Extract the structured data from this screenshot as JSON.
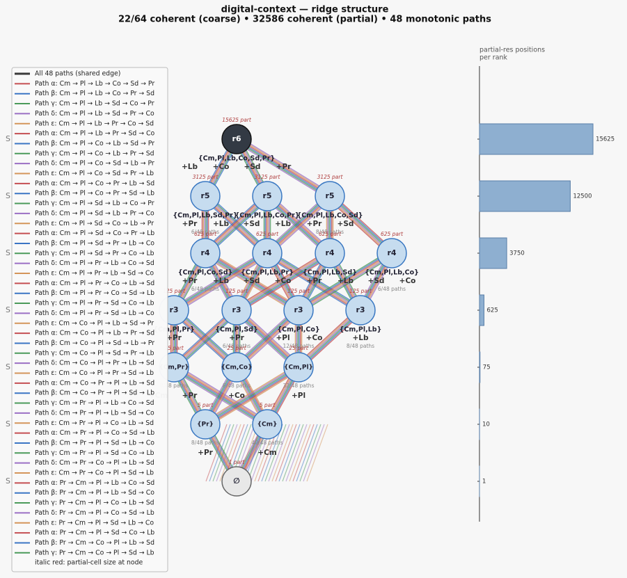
{
  "header": {
    "title": "digital-context — ridge structure",
    "subtitle": "22/64 coherent (coarse)  •  32586 coherent (partial)  •  48 monotonic paths"
  },
  "side_labels": [
    "S",
    "S",
    "S",
    "S",
    "S",
    "S",
    "S"
  ],
  "legend": {
    "shared": {
      "label": "All 48 paths (shared edge)",
      "color": "#3a3a3a"
    },
    "entries": [
      {
        "label": "Path α: Cm → Pl → Lb → Co → Sd → Pr",
        "color": "#c44e52"
      },
      {
        "label": "Path β: Cm → Pl → Lb → Co → Pr → Sd",
        "color": "#3b75c4"
      },
      {
        "label": "Path γ: Cm → Pl → Lb → Sd → Co → Pr",
        "color": "#4a9a5a"
      },
      {
        "label": "Path δ: Cm → Pl → Lb → Sd → Pr → Co",
        "color": "#9b6fc4"
      },
      {
        "label": "Path ε: Cm → Pl → Lb → Pr → Co → Sd",
        "color": "#d4955a"
      },
      {
        "label": "Path α: Cm → Pl → Lb → Pr → Sd → Co",
        "color": "#c44e52"
      },
      {
        "label": "Path β: Cm → Pl → Co → Lb → Sd → Pr",
        "color": "#3b75c4"
      },
      {
        "label": "Path γ: Cm → Pl → Co → Lb → Pr → Sd",
        "color": "#4a9a5a"
      },
      {
        "label": "Path δ: Cm → Pl → Co → Sd → Lb → Pr",
        "color": "#9b6fc4"
      },
      {
        "label": "Path ε: Cm → Pl → Co → Sd → Pr → Lb",
        "color": "#d4955a"
      },
      {
        "label": "Path α: Cm → Pl → Co → Pr → Lb → Sd",
        "color": "#c44e52"
      },
      {
        "label": "Path β: Cm → Pl → Co → Pr → Sd → Lb",
        "color": "#3b75c4"
      },
      {
        "label": "Path γ: Cm → Pl → Sd → Lb → Co → Pr",
        "color": "#4a9a5a"
      },
      {
        "label": "Path δ: Cm → Pl → Sd → Lb → Pr → Co",
        "color": "#9b6fc4"
      },
      {
        "label": "Path ε: Cm → Pl → Sd → Co → Lb → Pr",
        "color": "#d4955a"
      },
      {
        "label": "Path α: Cm → Pl → Sd → Co → Pr → Lb",
        "color": "#c44e52"
      },
      {
        "label": "Path β: Cm → Pl → Sd → Pr → Lb → Co",
        "color": "#3b75c4"
      },
      {
        "label": "Path γ: Cm → Pl → Sd → Pr → Co → Lb",
        "color": "#4a9a5a"
      },
      {
        "label": "Path δ: Cm → Pl → Pr → Lb → Co → Sd",
        "color": "#9b6fc4"
      },
      {
        "label": "Path ε: Cm → Pl → Pr → Lb → Sd → Co",
        "color": "#d4955a"
      },
      {
        "label": "Path α: Cm → Pl → Pr → Co → Lb → Sd",
        "color": "#c44e52"
      },
      {
        "label": "Path β: Cm → Pl → Pr → Co → Sd → Lb",
        "color": "#3b75c4"
      },
      {
        "label": "Path γ: Cm → Pl → Pr → Sd → Co → Lb",
        "color": "#4a9a5a"
      },
      {
        "label": "Path δ: Cm → Pl → Pr → Sd → Lb → Co",
        "color": "#9b6fc4"
      },
      {
        "label": "Path ε: Cm → Co → Pl → Lb → Sd → Pr",
        "color": "#d4955a"
      },
      {
        "label": "Path α: Cm → Co → Pl → Lb → Pr → Sd",
        "color": "#c44e52"
      },
      {
        "label": "Path β: Cm → Co → Pl → Sd → Lb → Pr",
        "color": "#3b75c4"
      },
      {
        "label": "Path γ: Cm → Co → Pl → Sd → Pr → Lb",
        "color": "#4a9a5a"
      },
      {
        "label": "Path δ: Cm → Co → Pl → Pr → Lb → Sd",
        "color": "#9b6fc4"
      },
      {
        "label": "Path ε: Cm → Co → Pl → Pr → Sd → Lb",
        "color": "#d4955a"
      },
      {
        "label": "Path α: Cm → Co → Pr → Pl → Lb → Sd",
        "color": "#c44e52"
      },
      {
        "label": "Path β: Cm → Co → Pr → Pl → Sd → Lb",
        "color": "#3b75c4"
      },
      {
        "label": "Path γ: Cm → Pr → Pl → Lb → Co → Sd",
        "color": "#4a9a5a"
      },
      {
        "label": "Path δ: Cm → Pr → Pl → Lb → Sd → Co",
        "color": "#9b6fc4"
      },
      {
        "label": "Path ε: Cm → Pr → Pl → Co → Lb → Sd",
        "color": "#d4955a"
      },
      {
        "label": "Path α: Cm → Pr → Pl → Co → Sd → Lb",
        "color": "#c44e52"
      },
      {
        "label": "Path β: Cm → Pr → Pl → Sd → Lb → Co",
        "color": "#3b75c4"
      },
      {
        "label": "Path γ: Cm → Pr → Pl → Sd → Co → Lb",
        "color": "#4a9a5a"
      },
      {
        "label": "Path δ: Cm → Pr → Co → Pl → Lb → Sd",
        "color": "#9b6fc4"
      },
      {
        "label": "Path ε: Cm → Pr → Co → Pl → Sd → Lb",
        "color": "#d4955a"
      },
      {
        "label": "Path α: Pr → Cm → Pl → Lb → Co → Sd",
        "color": "#c44e52"
      },
      {
        "label": "Path β: Pr → Cm → Pl → Lb → Sd → Co",
        "color": "#3b75c4"
      },
      {
        "label": "Path γ: Pr → Cm → Pl → Co → Lb → Sd",
        "color": "#4a9a5a"
      },
      {
        "label": "Path δ: Pr → Cm → Pl → Co → Sd → Lb",
        "color": "#9b6fc4"
      },
      {
        "label": "Path ε: Pr → Cm → Pl → Sd → Lb → Co",
        "color": "#d4955a"
      },
      {
        "label": "Path α: Pr → Cm → Pl → Sd → Co → Lb",
        "color": "#c44e52"
      },
      {
        "label": "Path β: Pr → Cm → Co → Pl → Lb → Sd",
        "color": "#3b75c4"
      },
      {
        "label": "Path γ: Pr → Cm → Co → Pl → Sd → Lb",
        "color": "#4a9a5a"
      }
    ],
    "note": "italic red: partial-cell size at node"
  },
  "nodes": [
    {
      "label": "r6",
      "part": "15625 part",
      "set": "{Cm,Pl,Lb,Co,Sd,Pr}",
      "adds": [
        "+Lb",
        "+Co",
        "+Sd",
        "+Pr"
      ]
    },
    {
      "label": "r5",
      "part": "3125 part",
      "set": "{Cm,Pl,Lb,Sd,Pr}",
      "adds": [
        "+Pr",
        "+Lb"
      ],
      "paths": "6/48 paths"
    },
    {
      "label": "r5",
      "part": "3125 part",
      "set": "{Cm,Pl,Lb,Co,Pr}",
      "adds": [
        "+Sd",
        "+Lb"
      ]
    },
    {
      "label": "r5",
      "part": "3125 part",
      "set": "{Cm,Pl,Lb,Co,Sd}",
      "adds": [
        "+Pr",
        "+Sd"
      ],
      "paths": "8/48 paths"
    },
    {
      "label": "r4",
      "part": "625 part",
      "set": "{Cm,Pl,Co,Sd}",
      "adds": [
        "+Pr",
        "+Lb"
      ],
      "paths": "6/48 paths"
    },
    {
      "label": "r4",
      "part": "625 part",
      "set": "{Cm,Pl,Lb,Pr}",
      "adds": [
        "+Sd",
        "+Co"
      ]
    },
    {
      "label": "r4",
      "part": "625 part",
      "set": "{Cm,Pl,Lb,Sd}",
      "adds": [
        "+Pr",
        "+Lb"
      ]
    },
    {
      "label": "r4",
      "part": "625 part",
      "set": "{Cm,Pl,Lb,Co}",
      "adds": [
        "+Sd",
        "+Co"
      ],
      "paths": "6/48 paths"
    },
    {
      "label": "r3",
      "part": "125 part",
      "set": "{Cm,Pl,Pr}",
      "adds": [
        "+Pr"
      ]
    },
    {
      "label": "r3",
      "part": "125 part",
      "set": "{Cm,Pl,Sd}",
      "adds": [
        "+Pr"
      ],
      "paths": "6/48 paths"
    },
    {
      "label": "r3",
      "part": "125 part",
      "set": "{Cm,Pl,Co}",
      "adds": [
        "+Pl",
        "+Co"
      ],
      "paths": "12/48 paths"
    },
    {
      "label": "r3",
      "part": "125 part",
      "set": "{Cm,Pl,Lb}",
      "adds": [
        "+Lb"
      ],
      "paths": "8/48 paths"
    },
    {
      "label": "{Cm,Pr}",
      "part": "25 part",
      "adds": [
        "+Cm",
        "+Pr"
      ],
      "paths": "8/48 paths"
    },
    {
      "label": "{Cm,Co}",
      "part": "25 part",
      "adds": [
        "+Co"
      ],
      "paths": "8/48 paths"
    },
    {
      "label": "{Cm,Pl}",
      "part": "25 part",
      "adds": [
        "+Pl"
      ],
      "paths": "32/48 paths"
    },
    {
      "label": "{Pr}",
      "part": "5 part",
      "adds": [
        "+Pr"
      ],
      "paths": "8/48 paths"
    },
    {
      "label": "{Cm}",
      "part": "5 part",
      "adds": [
        "+Cm"
      ],
      "paths": "40/48 paths"
    },
    {
      "label": "∅",
      "part": "1 part"
    }
  ],
  "chart_data": {
    "type": "bar",
    "title_lines": [
      "partial-res positions",
      "per rank"
    ],
    "values": [
      15625,
      12500,
      3750,
      625,
      75,
      10,
      1
    ],
    "xlim": [
      0,
      16000
    ],
    "color": "#8eafd0"
  }
}
